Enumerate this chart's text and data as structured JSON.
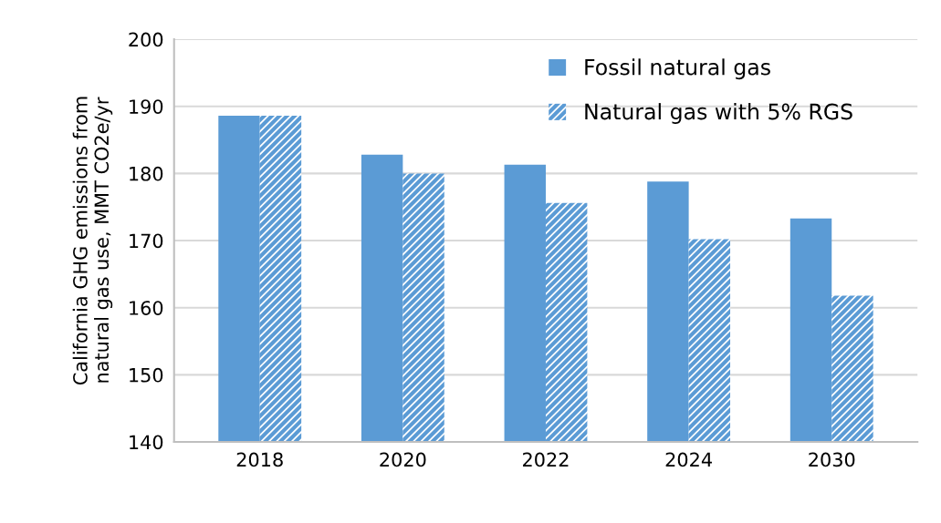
{
  "chart_data": {
    "type": "bar",
    "ylabel": "California GHG emissions from\nnatural gas use, MMT CO2e/yr",
    "categories": [
      "2018",
      "2020",
      "2022",
      "2024",
      "2030"
    ],
    "series": [
      {
        "name": "Fossil natural gas",
        "color": "#5b9bd5",
        "values": [
          188.6,
          182.8,
          181.3,
          178.8,
          173.3
        ]
      },
      {
        "name": "Natural gas with 5% RGS",
        "color": "#5b9bd5",
        "values": [
          188.6,
          180.0,
          175.6,
          170.2,
          161.8
        ]
      }
    ],
    "ylim": [
      140,
      200
    ],
    "yticks": [
      140,
      150,
      160,
      170,
      180,
      190,
      200
    ],
    "grid": "y",
    "legend": "top right"
  }
}
